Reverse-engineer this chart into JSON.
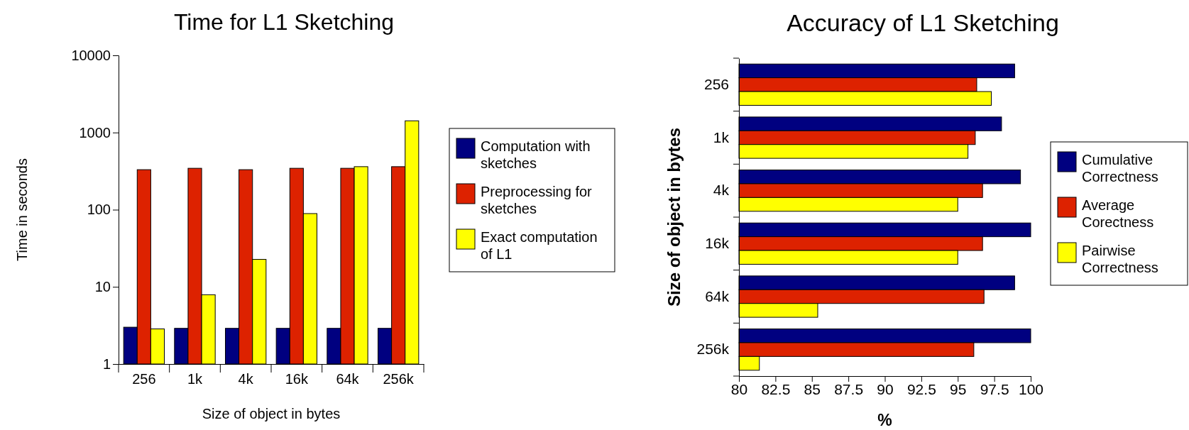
{
  "chart_data": [
    {
      "type": "bar",
      "title": "Time for L1 Sketching",
      "xlabel": "Size of object in bytes",
      "ylabel": "Time in seconds",
      "categories": [
        "256",
        "1k",
        "4k",
        "16k",
        "64k",
        "256k"
      ],
      "log": "y",
      "ylim": [
        1,
        10000
      ],
      "yticks": [
        1,
        10,
        100,
        1000,
        10000
      ],
      "legend": "right",
      "series": [
        {
          "name": "Computation with sketches",
          "color": "#000080",
          "values": [
            3,
            2.9,
            2.9,
            2.9,
            2.9,
            2.9
          ]
        },
        {
          "name": "Preprocessing for sketches",
          "color": "#dd2200",
          "values": [
            330,
            344,
            330,
            344,
            344,
            361
          ]
        },
        {
          "name": "Exact computation of L1",
          "color": "#ffff00",
          "values": [
            2.85,
            7.9,
            22.7,
            89,
            361,
            1418
          ]
        }
      ]
    },
    {
      "type": "bar",
      "orientation": "horizontal",
      "title": "Accuracy of L1 Sketching",
      "xlabel": "%",
      "ylabel": "Size of object in bytes",
      "categories": [
        "256",
        "1k",
        "4k",
        "16k",
        "64k",
        "256k"
      ],
      "xlim": [
        80,
        100
      ],
      "xticks": [
        80,
        82.5,
        85,
        87.5,
        90,
        92.5,
        95,
        97.5,
        100
      ],
      "legend": "right",
      "series": [
        {
          "name": "Cumulative Correctness",
          "color": "#000080",
          "values": [
            98.9,
            98.0,
            99.3,
            100,
            98.9,
            100
          ]
        },
        {
          "name": "Average Corectness",
          "color": "#dd2200",
          "values": [
            96.3,
            96.2,
            96.7,
            96.7,
            96.8,
            96.1
          ]
        },
        {
          "name": "Pairwise Correctness",
          "color": "#ffff00",
          "values": [
            97.3,
            95.7,
            95.0,
            95.0,
            85.4,
            81.4
          ]
        }
      ]
    }
  ]
}
